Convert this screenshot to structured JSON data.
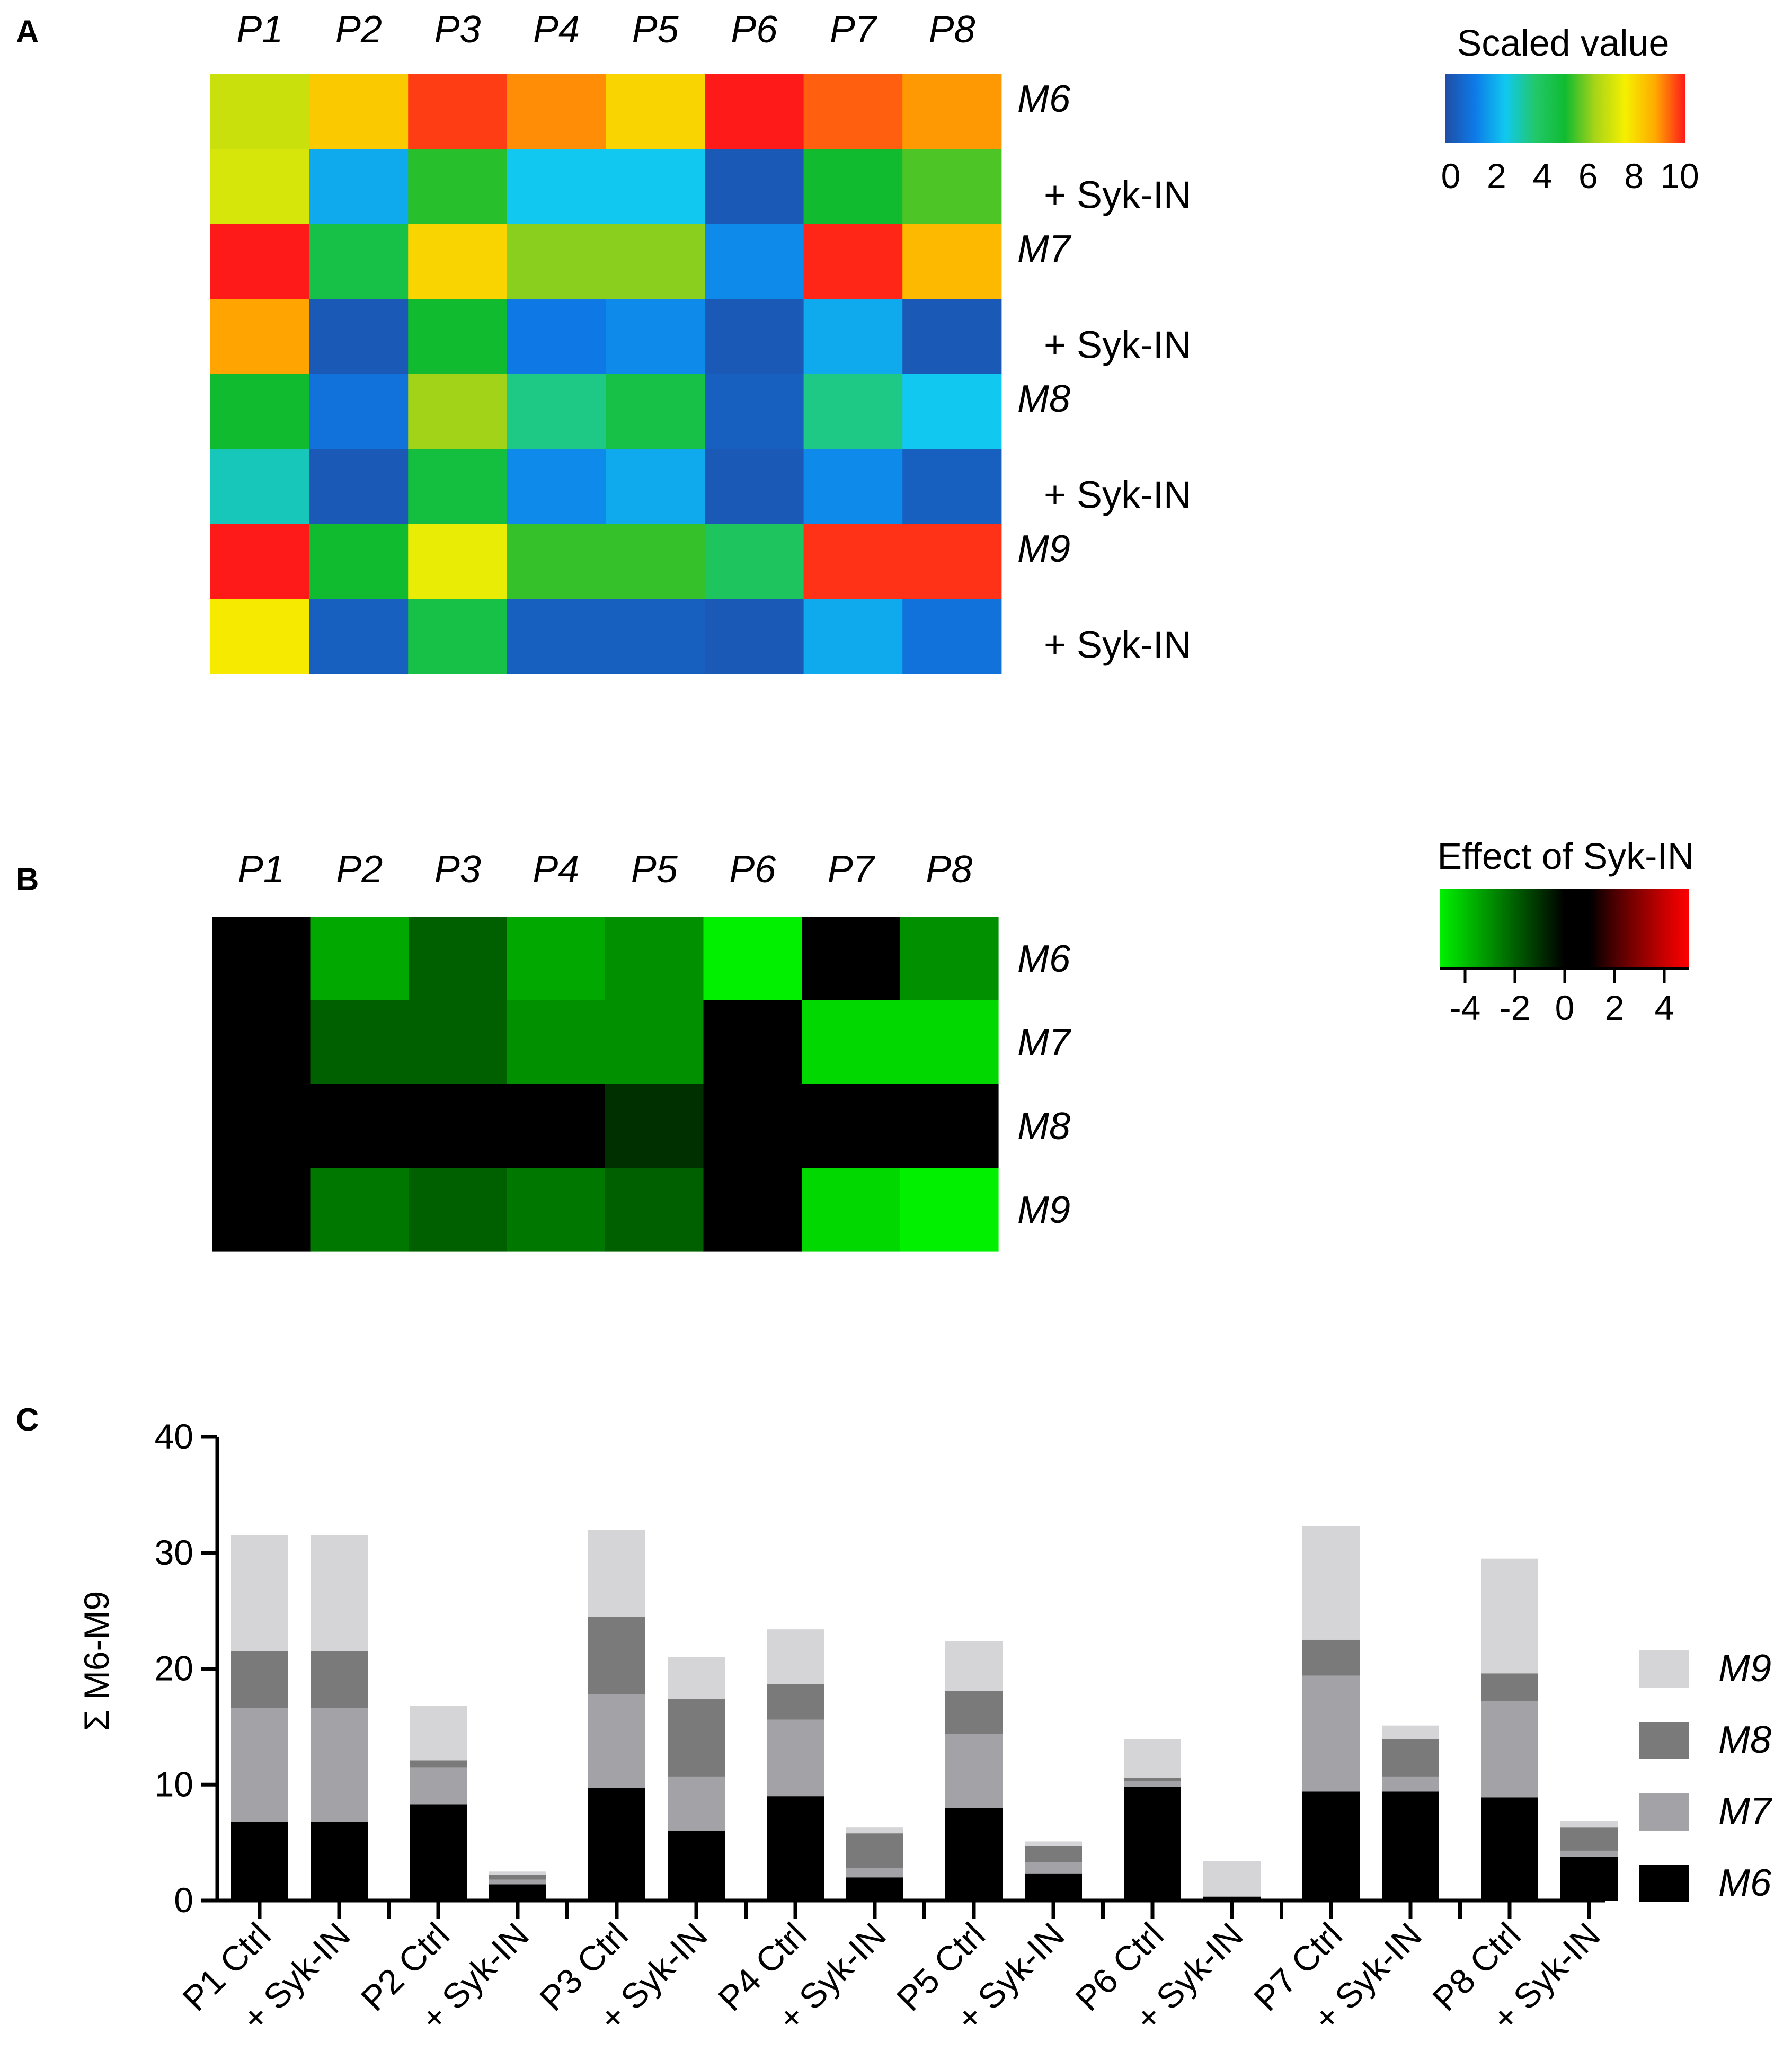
{
  "panels": {
    "a": "A",
    "b": "B",
    "c": "C"
  },
  "chart_data": [
    {
      "type": "heatmap",
      "panel": "A",
      "columns": [
        "P1",
        "P2",
        "P3",
        "P4",
        "P5",
        "P6",
        "P7",
        "P8"
      ],
      "rows": [
        "M6",
        "+ Syk-IN",
        "M7",
        "+ Syk-IN",
        "M8",
        "+ Syk-IN",
        "M9",
        "+ Syk-IN"
      ],
      "row_italic": [
        true,
        false,
        true,
        false,
        true,
        false,
        true,
        false
      ],
      "values": [
        [
          6.8,
          8.2,
          9.7,
          9.0,
          8.0,
          10.0,
          9.4,
          8.9
        ],
        [
          7.0,
          2.0,
          5.2,
          2.5,
          2.5,
          0.3,
          5.0,
          5.5
        ],
        [
          10.0,
          4.5,
          8.0,
          6.0,
          6.0,
          1.5,
          9.9,
          8.5
        ],
        [
          8.8,
          0.3,
          5.0,
          1.2,
          1.5,
          0.3,
          2.0,
          0.3
        ],
        [
          5.0,
          1.0,
          6.2,
          3.5,
          4.5,
          0.5,
          3.5,
          2.5
        ],
        [
          3.0,
          0.3,
          4.7,
          1.5,
          2.0,
          0.3,
          1.5,
          0.5
        ],
        [
          10.0,
          5.0,
          7.3,
          5.3,
          5.3,
          4.0,
          9.8,
          9.8
        ],
        [
          7.6,
          0.5,
          4.5,
          0.5,
          0.5,
          0.3,
          2.0,
          1.0
        ]
      ],
      "legend": {
        "title": "Scaled value",
        "ticks": [
          "0",
          "2",
          "4",
          "6",
          "8",
          "10"
        ],
        "range": [
          0,
          10
        ],
        "colors": [
          "#1f4ea6",
          "#0d7be8",
          "#10c8f0",
          "#22c86a",
          "#10bb30",
          "#a8d418",
          "#f5f000",
          "#ffaa00",
          "#ff1a1a"
        ]
      }
    },
    {
      "type": "heatmap",
      "panel": "B",
      "columns": [
        "P1",
        "P2",
        "P3",
        "P4",
        "P5",
        "P6",
        "P7",
        "P8"
      ],
      "rows": [
        "M6",
        "M7",
        "M8",
        "M9"
      ],
      "values": [
        [
          0,
          -3.5,
          -2,
          -3.5,
          -3,
          -5,
          0,
          -3
        ],
        [
          0,
          -2,
          -2,
          -3,
          -3,
          0,
          -4.5,
          -4.5
        ],
        [
          0,
          0,
          0,
          0,
          -1,
          0,
          0,
          0
        ],
        [
          0,
          -2.5,
          -2,
          -2.5,
          -2,
          0,
          -4.5,
          -5
        ]
      ],
      "legend": {
        "title": "Effect of Syk-IN",
        "ticks": [
          "-4",
          "-2",
          "0",
          "2",
          "4"
        ],
        "range": [
          -5,
          5
        ],
        "colors": [
          "#00f000",
          "#00c000",
          "#009000",
          "#006000",
          "#003000",
          "#000000",
          "#000000",
          "#4a0000",
          "#8a0000",
          "#c80000",
          "#ff0000"
        ]
      }
    },
    {
      "type": "bar",
      "stacked": true,
      "panel": "C",
      "categories": [
        "P1 Ctrl",
        "+ Syk-IN",
        "P2 Ctrl",
        "+ Syk-IN",
        "P3 Ctrl",
        "+ Syk-IN",
        "P4 Ctrl",
        "+ Syk-IN",
        "P5 Ctrl",
        "+ Syk-IN",
        "P6 Ctrl",
        "+ Syk-IN",
        "P7 Ctrl",
        "+ Syk-IN",
        "P8 Ctrl",
        "+ Syk-IN"
      ],
      "series": [
        {
          "name": "M6",
          "color": "#000000",
          "values": [
            6.8,
            6.8,
            8.3,
            1.4,
            9.7,
            6.0,
            9.0,
            2.0,
            8.0,
            2.3,
            9.8,
            0.3,
            9.4,
            9.4,
            8.9,
            3.8
          ]
        },
        {
          "name": "M7",
          "color": "#a3a3a7",
          "values": [
            9.8,
            9.8,
            3.2,
            0.4,
            8.1,
            4.7,
            6.6,
            0.8,
            6.4,
            1.0,
            0.5,
            0.05,
            10.0,
            1.3,
            8.3,
            0.5
          ]
        },
        {
          "name": "M8",
          "color": "#7a7a7a",
          "values": [
            4.9,
            4.9,
            0.6,
            0.4,
            6.7,
            6.7,
            3.1,
            3.0,
            3.7,
            1.4,
            0.3,
            0.05,
            3.1,
            3.2,
            2.4,
            2.0
          ]
        },
        {
          "name": "M9",
          "color": "#d5d5d7",
          "values": [
            10.0,
            10.0,
            4.7,
            0.3,
            7.5,
            3.6,
            4.7,
            0.5,
            4.3,
            0.4,
            3.3,
            3.0,
            9.8,
            1.2,
            9.9,
            0.6
          ]
        }
      ],
      "legend_order": [
        "M9",
        "M8",
        "M7",
        "M6"
      ],
      "ylabel": "Σ M6-M9",
      "ylim": [
        0,
        40
      ],
      "yticks": [
        "0",
        "10",
        "20",
        "30",
        "40"
      ],
      "legend_position": "right"
    }
  ]
}
